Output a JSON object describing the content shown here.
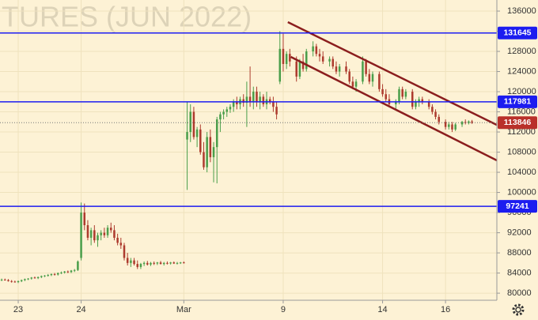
{
  "chart_data": {
    "type": "candlestick",
    "watermark": "TURES (JUN 2022)",
    "x": [
      0,
      1,
      2,
      3,
      4,
      5,
      6,
      7,
      8,
      9,
      10,
      11,
      12,
      13,
      14,
      15,
      16,
      17,
      18,
      19,
      20,
      21,
      22,
      23,
      24,
      25,
      26,
      27,
      28,
      29,
      30,
      31,
      32,
      33,
      34,
      35,
      36,
      37,
      38,
      39,
      40,
      41,
      42,
      43,
      44,
      45,
      46,
      47,
      48,
      49,
      50,
      51,
      52,
      53,
      54,
      55,
      56,
      57,
      58,
      59,
      60,
      61,
      62,
      63,
      64,
      65,
      66,
      67,
      68,
      69,
      70,
      71,
      72,
      73,
      74,
      75,
      76,
      77,
      78,
      79,
      80,
      81,
      82,
      83,
      84,
      85,
      86,
      87,
      89,
      90,
      91,
      92,
      94,
      95,
      96,
      97,
      99,
      100,
      101,
      102,
      104,
      105,
      106,
      107,
      109,
      110,
      111,
      112,
      114,
      115,
      116,
      117,
      119,
      120,
      121,
      122,
      124,
      125,
      126,
      127,
      129,
      130,
      131,
      132,
      134,
      135,
      136,
      137,
      139,
      140,
      141,
      142
    ],
    "open": [
      82600,
      82700,
      82600,
      82400,
      82300,
      82200,
      82400,
      82600,
      82800,
      82900,
      83100,
      83000,
      83200,
      83400,
      83500,
      83600,
      83800,
      83700,
      84000,
      84100,
      84300,
      84200,
      84500,
      84600,
      87000,
      96000,
      93500,
      91000,
      92500,
      90500,
      91500,
      92000,
      91500,
      93000,
      92500,
      91000,
      90000,
      89500,
      87000,
      86000,
      86500,
      85800,
      85200,
      85800,
      86000,
      85700,
      86000,
      85900,
      86100,
      85800,
      86000,
      85900,
      86100,
      85900,
      86000,
      86100,
      110500,
      112000,
      116000,
      111000,
      112500,
      108000,
      105000,
      111000,
      107000,
      109000,
      114500,
      115500,
      116000,
      116500,
      117000,
      118000,
      117500,
      118500,
      117800,
      119000,
      118000,
      120000,
      118000,
      119000,
      117500,
      118500,
      118000,
      117000,
      122000,
      128500,
      125500,
      127500,
      126000,
      123000,
      126000,
      124500,
      128000,
      129000,
      127500,
      127000,
      126000,
      126500,
      125000,
      124000,
      125000,
      124000,
      122000,
      121000,
      122000,
      126000,
      123500,
      122000,
      123500,
      120500,
      119500,
      118500,
      117500,
      118000,
      120500,
      119000,
      120000,
      117000,
      118000,
      118500,
      118000,
      117000,
      116000,
      115000,
      114000,
      113000,
      113500,
      112500,
      113500,
      114000,
      113800,
      114100
    ],
    "high": [
      82900,
      82900,
      82800,
      82600,
      82500,
      82500,
      82700,
      82900,
      83000,
      83200,
      83300,
      83300,
      83500,
      83600,
      83800,
      83900,
      84000,
      84100,
      84300,
      84400,
      84500,
      84600,
      84800,
      86500,
      98000,
      97800,
      94500,
      93000,
      93500,
      92000,
      92500,
      93000,
      93500,
      94000,
      93500,
      91800,
      91000,
      90000,
      88000,
      87000,
      87000,
      86500,
      86000,
      86300,
      86400,
      86200,
      86300,
      86200,
      86400,
      86200,
      86300,
      86200,
      86300,
      86200,
      86200,
      86300,
      118000,
      117500,
      117000,
      113000,
      113500,
      110000,
      112000,
      112500,
      110000,
      115000,
      116000,
      116500,
      117000,
      117500,
      118500,
      119000,
      119000,
      119500,
      122000,
      125000,
      121000,
      121000,
      120000,
      119500,
      120000,
      119000,
      119000,
      118000,
      132000,
      131500,
      128000,
      128500,
      127000,
      126500,
      127500,
      128500,
      130000,
      129500,
      128500,
      128000,
      127000,
      127000,
      126000,
      125500,
      126000,
      124500,
      123000,
      122500,
      127000,
      126500,
      124500,
      124000,
      124000,
      121500,
      120500,
      119500,
      118500,
      121000,
      121000,
      120500,
      120500,
      118500,
      119000,
      119000,
      118500,
      117500,
      116500,
      115500,
      114500,
      114000,
      114000,
      113800,
      114200,
      114500,
      114300,
      114400
    ],
    "low": [
      82400,
      82500,
      82300,
      82100,
      82100,
      82000,
      82200,
      82400,
      82600,
      82700,
      82900,
      82800,
      83000,
      83200,
      83300,
      83400,
      83500,
      83500,
      83800,
      83900,
      84000,
      84000,
      84200,
      84400,
      86500,
      92500,
      90500,
      89500,
      90000,
      89200,
      90500,
      91000,
      91000,
      92000,
      90500,
      89500,
      88800,
      86500,
      85500,
      85200,
      85500,
      84800,
      84800,
      85400,
      85500,
      85400,
      85600,
      85600,
      85700,
      85500,
      85700,
      85700,
      85800,
      85700,
      85800,
      85900,
      100500,
      110000,
      110500,
      109000,
      107500,
      104500,
      104000,
      106000,
      102000,
      101800,
      112000,
      114500,
      115000,
      115800,
      116000,
      116500,
      116500,
      117000,
      113000,
      117000,
      116500,
      117000,
      116500,
      117000,
      116500,
      117500,
      116000,
      114500,
      121500,
      124000,
      124500,
      125000,
      122000,
      122500,
      124000,
      124000,
      127000,
      127000,
      126000,
      125500,
      125000,
      124500,
      123500,
      123000,
      123500,
      121500,
      120500,
      120000,
      121500,
      123000,
      121500,
      121000,
      120000,
      119000,
      118000,
      117000,
      116500,
      117500,
      118500,
      118500,
      116500,
      116500,
      117000,
      117500,
      116500,
      115500,
      114500,
      113500,
      112500,
      112500,
      112000,
      112200,
      113000,
      113500,
      113500,
      113600
    ],
    "close": [
      82700,
      82600,
      82400,
      82300,
      82200,
      82400,
      82600,
      82800,
      82900,
      83100,
      83000,
      83200,
      83400,
      83500,
      83600,
      83800,
      83700,
      84000,
      84100,
      84300,
      84200,
      84500,
      84600,
      86300,
      96000,
      93500,
      91000,
      92500,
      90500,
      91500,
      92000,
      91500,
      93000,
      92500,
      91000,
      90000,
      89500,
      87000,
      86000,
      86500,
      85800,
      85200,
      85800,
      86000,
      85700,
      86000,
      85900,
      86100,
      85800,
      86000,
      85900,
      86100,
      85900,
      86000,
      86100,
      86000,
      112000,
      116000,
      111000,
      112500,
      108000,
      105000,
      111000,
      107000,
      109000,
      114500,
      115500,
      116000,
      116500,
      117000,
      118000,
      117500,
      118500,
      117800,
      119000,
      118000,
      120000,
      118000,
      119000,
      117500,
      118500,
      118000,
      117000,
      115500,
      128500,
      125500,
      127500,
      126000,
      123000,
      126000,
      124500,
      128000,
      129000,
      127500,
      127000,
      126000,
      126500,
      125000,
      124000,
      125000,
      124000,
      122000,
      121000,
      122000,
      126000,
      123500,
      122000,
      123500,
      120500,
      119500,
      118500,
      117500,
      118000,
      120500,
      119000,
      120000,
      117000,
      118000,
      118500,
      118000,
      117000,
      116000,
      115000,
      114000,
      113000,
      113500,
      112500,
      113500,
      114000,
      113800,
      114100,
      113846
    ],
    "up_color": "#4a9e4a",
    "down_color": "#ad3b2e",
    "xlim": [
      -0.5,
      149.5
    ],
    "ylim": [
      78600,
      138200
    ],
    "xticks": [
      {
        "value": 5,
        "label": "23"
      },
      {
        "value": 24,
        "label": "24"
      },
      {
        "value": 55,
        "label": "Mar"
      },
      {
        "value": 85,
        "label": "9"
      },
      {
        "value": 115,
        "label": "14"
      },
      {
        "value": 134,
        "label": "16"
      }
    ],
    "yticks": [
      80000,
      84000,
      88000,
      92000,
      96000,
      100000,
      104000,
      108000,
      112000,
      116000,
      120000,
      124000,
      128000,
      132000,
      136000
    ],
    "grid": true,
    "levels": {
      "values": [
        131645,
        117981,
        97241
      ],
      "color": "#1c1cf0"
    },
    "last_price": {
      "value": 113846,
      "color": "#b9302a"
    },
    "channel": {
      "color": "#8b1e1e",
      "lines": [
        {
          "x": [
            86.4,
            149.5
          ],
          "y": [
            133800,
            113400
          ]
        },
        {
          "x": [
            87.3,
            149.5
          ],
          "y": [
            126900,
            106350
          ]
        }
      ]
    }
  }
}
